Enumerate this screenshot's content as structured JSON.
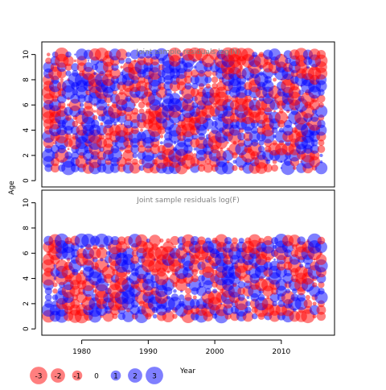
{
  "chart_data": [
    {
      "type": "scatter",
      "title": "Joint sample residuals log(N)",
      "ylabel": "Age",
      "xlabel": "",
      "xlim": [
        1974,
        2018
      ],
      "ylim": [
        -0.5,
        11
      ],
      "x_ticks": [
        1980,
        1990,
        2000,
        2010
      ],
      "y_ticks": [
        0,
        2,
        4,
        6,
        8,
        10
      ],
      "years": [
        1975,
        2016
      ],
      "ages": [
        1,
        10
      ],
      "marker": "bubble; area proportional to |residual|; red = negative, blue = positive",
      "colors": {
        "negative": "#ff0000",
        "positive": "#0000ff"
      }
    },
    {
      "type": "scatter",
      "title": "Joint sample residuals log(F)",
      "ylabel": "",
      "xlabel": "Year",
      "xlim": [
        1974,
        2018
      ],
      "ylim": [
        -0.5,
        11
      ],
      "x_ticks": [
        1980,
        1990,
        2000,
        2010
      ],
      "y_ticks": [
        0,
        2,
        4,
        6,
        8,
        10
      ],
      "years": [
        1975,
        2016
      ],
      "ages": [
        1,
        7
      ],
      "marker": "bubble; area proportional to |residual|; red = negative, blue = positive",
      "colors": {
        "negative": "#ff0000",
        "positive": "#0000ff"
      }
    }
  ],
  "shared": {
    "ylabel": "Age",
    "xlabel": "Year"
  },
  "legend": {
    "items": [
      {
        "label": "-3",
        "value": -3
      },
      {
        "label": "-2",
        "value": -2
      },
      {
        "label": "-1",
        "value": -1
      },
      {
        "label": "0",
        "value": 0
      },
      {
        "label": "1",
        "value": 1
      },
      {
        "label": "2",
        "value": 2
      },
      {
        "label": "3",
        "value": 3
      }
    ]
  }
}
